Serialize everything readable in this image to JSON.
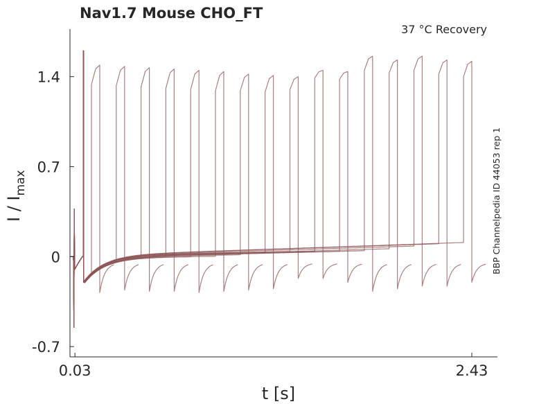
{
  "chart_data": {
    "type": "line",
    "title": "Nav1.7  Mouse  CHO_FT",
    "annotation": "37 °C  Recovery",
    "side_label": "BBP Channelpedia ID 44053 rep 1",
    "xlabel": "t [s]",
    "ylabel_main": "I / I",
    "ylabel_sub": "max",
    "xlim": [
      0.0,
      2.585
    ],
    "ylim": [
      -0.78,
      1.77
    ],
    "xticks": [
      0.03,
      2.43
    ],
    "xtick_labels": [
      "0.03",
      "2.43"
    ],
    "yticks": [
      -0.7,
      0,
      0.7,
      1.4
    ],
    "ytick_labels": [
      "-0.7",
      "0",
      "0.7",
      "1.4"
    ],
    "grid": false,
    "color": "#8c5656",
    "conditioning_pulse": {
      "t": 0.08,
      "peak": 1.6,
      "artifact_min": -0.55,
      "artifact_max": 0.37
    },
    "test_pulse_duration": 0.05,
    "sweeps": [
      {
        "onset": 0.13,
        "start": 1.34,
        "peak": 1.49
      },
      {
        "onset": 0.28,
        "start": 1.33,
        "peak": 1.48
      },
      {
        "onset": 0.43,
        "start": 1.32,
        "peak": 1.47
      },
      {
        "onset": 0.58,
        "start": 1.31,
        "peak": 1.46
      },
      {
        "onset": 0.73,
        "start": 1.3,
        "peak": 1.45
      },
      {
        "onset": 0.88,
        "start": 1.29,
        "peak": 1.44
      },
      {
        "onset": 1.03,
        "start": 1.29,
        "peak": 1.42
      },
      {
        "onset": 1.18,
        "start": 1.28,
        "peak": 1.41
      },
      {
        "onset": 1.33,
        "start": 1.3,
        "peak": 1.4
      },
      {
        "onset": 1.48,
        "start": 1.39,
        "peak": 1.45
      },
      {
        "onset": 1.63,
        "start": 1.38,
        "peak": 1.44
      },
      {
        "onset": 1.78,
        "start": 1.45,
        "peak": 1.56
      },
      {
        "onset": 1.93,
        "start": 1.43,
        "peak": 1.53
      },
      {
        "onset": 2.08,
        "start": 1.45,
        "peak": 1.56
      },
      {
        "onset": 2.23,
        "start": 1.42,
        "peak": 1.53
      },
      {
        "onset": 2.38,
        "start": 1.4,
        "peak": 1.52
      }
    ],
    "post_pulse_min": [
      -0.28,
      -0.26,
      -0.27,
      -0.27,
      -0.28,
      -0.27,
      -0.26,
      -0.25,
      -0.17,
      -0.17,
      -0.2,
      -0.27,
      -0.25,
      -0.23,
      -0.23,
      -0.2
    ]
  }
}
